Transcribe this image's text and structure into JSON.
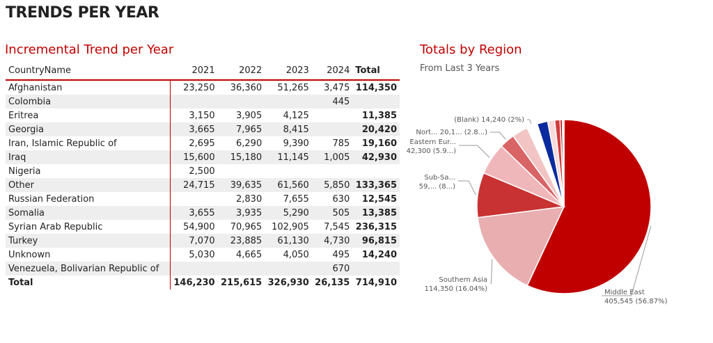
{
  "page_title": "TRENDS PER YEAR",
  "table": {
    "title": "Incremental Trend per Year",
    "headers": [
      "CountryName",
      "2021",
      "2022",
      "2023",
      "2024",
      "Total"
    ],
    "rows": [
      [
        "Afghanistan",
        "23,250",
        "36,360",
        "51,265",
        "3,475",
        "114,350"
      ],
      [
        "Colombia",
        "",
        "",
        "",
        "445",
        ""
      ],
      [
        "Eritrea",
        "3,150",
        "3,905",
        "4,125",
        "",
        "11,385"
      ],
      [
        "Georgia",
        "3,665",
        "7,965",
        "8,415",
        "",
        "20,420"
      ],
      [
        "Iran, Islamic Republic of",
        "2,695",
        "6,290",
        "9,390",
        "785",
        "19,160"
      ],
      [
        "Iraq",
        "15,600",
        "15,180",
        "11,145",
        "1,005",
        "42,930"
      ],
      [
        "Nigeria",
        "2,500",
        "",
        "",
        "",
        ""
      ],
      [
        "Other",
        "24,715",
        "39,635",
        "61,560",
        "5,850",
        "133,365"
      ],
      [
        "Russian Federation",
        "",
        "2,830",
        "7,655",
        "630",
        "12,545"
      ],
      [
        "Somalia",
        "3,655",
        "3,935",
        "5,290",
        "505",
        "13,385"
      ],
      [
        "Syrian Arab Republic",
        "54,900",
        "70,965",
        "102,905",
        "7,545",
        "236,315"
      ],
      [
        "Turkey",
        "7,070",
        "23,885",
        "61,130",
        "4,730",
        "96,815"
      ],
      [
        "Unknown",
        "5,030",
        "4,665",
        "4,050",
        "495",
        "14,240"
      ],
      [
        "Venezuela, Bolivarian Republic of",
        "",
        "",
        "",
        "670",
        ""
      ]
    ],
    "total": [
      "Total",
      "146,230",
      "215,615",
      "326,930",
      "26,135",
      "714,910"
    ]
  },
  "chart_data": {
    "type": "pie",
    "title": "Totals by Region",
    "subtitle": "From Last 3 Years",
    "slices": [
      {
        "label": "Middle East",
        "value_text": "405,545 (56.87%)",
        "value": 405545,
        "color": "#C00000"
      },
      {
        "label": "Southern Asia",
        "value_text": "114,350 (16.04%)",
        "value": 114350,
        "color": "#E8AEB0"
      },
      {
        "label": "Sub-Sa...",
        "value_text": "59,... (8...)",
        "value": 59300,
        "color": "#C83232"
      },
      {
        "label": "Eastern Eur...",
        "value_text": "42,300 (5.9...)",
        "value": 42300,
        "color": "#F0B7BA"
      },
      {
        "label": "Nort...",
        "value_text": "20,1... (2.8...)",
        "value": 20100,
        "color": "#D96466"
      },
      {
        "label": "",
        "value": 21000,
        "color": "#F2C4C4"
      },
      {
        "label": "(Blank)",
        "value_text": "14,240 (2%)",
        "value": 14240,
        "color": "#FFFFFF"
      },
      {
        "label": "",
        "value": 14000,
        "color": "#0B2A9E"
      },
      {
        "label": "",
        "value": 9300,
        "color": "#F9DADA"
      },
      {
        "label": "",
        "value": 7000,
        "color": "#D23C3C"
      },
      {
        "label": "",
        "value": 3000,
        "color": "#B00000"
      },
      {
        "label": "",
        "value": 2200,
        "color": "#F5C8C8"
      }
    ]
  }
}
